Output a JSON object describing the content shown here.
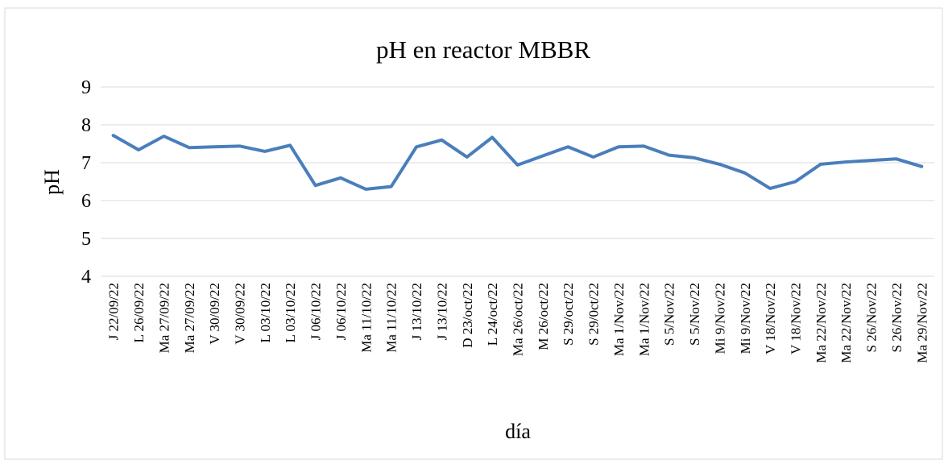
{
  "chart_data": {
    "type": "line",
    "title": "pH en reactor MBBR",
    "x_label": "día",
    "y_label": "pH",
    "categories": [
      "J 22/09/22",
      "L 26/09/22",
      "Ma 27/09/22",
      "Ma 27/09/22",
      "V 30/09/22",
      "V 30/09/22",
      "L 03/10/22",
      "L 03/10/22",
      "J 06/10/22",
      "J 06/10/22",
      "Ma 11/10/22",
      "Ma 11/10/22",
      "J 13/10/22",
      "J 13/10/22",
      "D 23/oct/22",
      "L 24/oct/22",
      "Ma 26/oct/22",
      "M 26/oct/22",
      "S 29/oct/22",
      "S 29/0ct/22",
      "Ma 1/Nov/22",
      "Ma 1/Nov/22",
      "S 5/Nov/22",
      "S 5/Nov/22",
      "Mi 9/Nov/22",
      "Mi 9/Nov/22",
      "V 18/Nov/22",
      "V 18/Nov/22",
      "Ma 22/Nov/22",
      "Ma 22/Nov/22",
      "S 26/Nov/22",
      "S 26/Nov/22",
      "Ma 29/Nov/22"
    ],
    "series": [
      {
        "name": "pH",
        "color": "#4a7ebb",
        "values": [
          7.72,
          7.34,
          7.7,
          7.4,
          7.42,
          7.44,
          7.3,
          7.46,
          6.4,
          6.6,
          6.3,
          6.37,
          7.42,
          7.6,
          7.15,
          7.67,
          6.94,
          7.18,
          7.42,
          7.15,
          7.42,
          7.44,
          7.2,
          7.13,
          6.96,
          6.73,
          6.32,
          6.5,
          6.96,
          7.02,
          7.06,
          7.1,
          6.9
        ]
      }
    ],
    "ylim": [
      4,
      9
    ],
    "yticks": [
      4,
      5,
      6,
      7,
      8,
      9
    ],
    "grid": true
  }
}
